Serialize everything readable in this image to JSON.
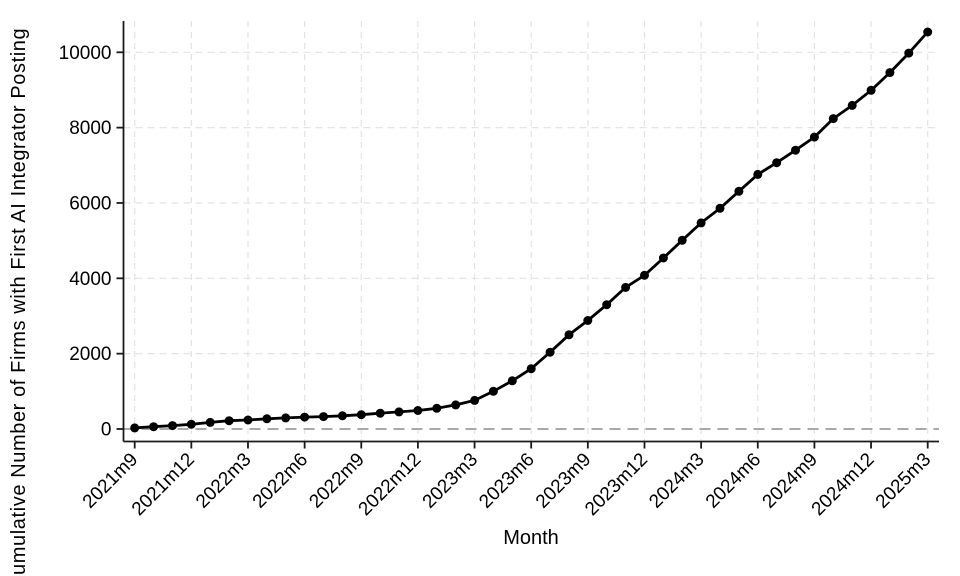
{
  "chart_data": {
    "type": "line",
    "title": "",
    "xlabel": "Month",
    "ylabel": "Cumulative Number of Firms with First AI Integrator Posting",
    "legend": "none",
    "grid": true,
    "categories": [
      "2021m9",
      "2021m10",
      "2021m11",
      "2021m12",
      "2022m1",
      "2022m2",
      "2022m3",
      "2022m4",
      "2022m5",
      "2022m6",
      "2022m7",
      "2022m8",
      "2022m9",
      "2022m10",
      "2022m11",
      "2022m12",
      "2023m1",
      "2023m2",
      "2023m3",
      "2023m4",
      "2023m5",
      "2023m6",
      "2023m7",
      "2023m8",
      "2023m9",
      "2023m10",
      "2023m11",
      "2023m12",
      "2024m1",
      "2024m2",
      "2024m3",
      "2024m4",
      "2024m5",
      "2024m6",
      "2024m7",
      "2024m8",
      "2024m9",
      "2024m10",
      "2024m11",
      "2024m12",
      "2025m1",
      "2025m2",
      "2025m3"
    ],
    "series": [
      {
        "name": "cumulative-firms",
        "values": [
          30,
          60,
          90,
          125,
          175,
          220,
          240,
          270,
          295,
          315,
          330,
          350,
          380,
          420,
          455,
          490,
          550,
          640,
          760,
          1000,
          1280,
          1600,
          2040,
          2500,
          2880,
          3300,
          3760,
          4080,
          4540,
          5010,
          5470,
          5860,
          6310,
          6760,
          7070,
          7400,
          7750,
          8240,
          8590,
          8990,
          9460,
          9980,
          10540
        ]
      }
    ],
    "x_tick_labels": [
      "2021m9",
      "2021m12",
      "2022m3",
      "2022m6",
      "2022m9",
      "2022m12",
      "2023m3",
      "2023m6",
      "2023m9",
      "2023m12",
      "2024m3",
      "2024m6",
      "2024m9",
      "2024m12",
      "2025m3"
    ],
    "y_ticks": [
      0,
      2000,
      4000,
      6000,
      8000,
      10000
    ],
    "ylim": [
      0,
      10800
    ],
    "colors": {
      "line": "#000000",
      "marker": "#000000",
      "grid": "#e3e3e3",
      "zero_line": "#a9a9a9",
      "axis": "#1a1a1a",
      "text": "#000000",
      "background": "#ffffff"
    }
  }
}
